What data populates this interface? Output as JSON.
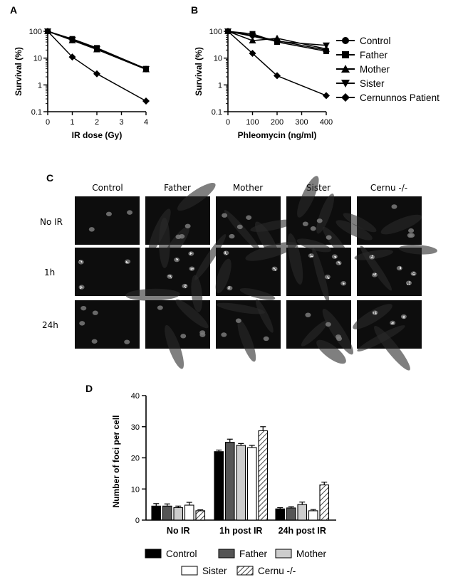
{
  "panel_letters": {
    "a": "A",
    "b": "B",
    "c": "C",
    "d": "D"
  },
  "legend_ab": [
    "Control",
    "Father",
    "Mother",
    "Sister",
    "Cernunnos Patient"
  ],
  "micrograph_grid": {
    "columns": [
      "Control",
      "Father",
      "Mother",
      "Sister",
      "Cernu -/-"
    ],
    "rows": [
      "No IR",
      "1h",
      "24h"
    ]
  },
  "chart_data": [
    {
      "panel": "A",
      "type": "line",
      "yscale": "log",
      "xlabel": "IR dose (Gy)",
      "ylabel": "Survival (%)",
      "xlim": [
        0,
        4
      ],
      "ylim": [
        0.1,
        100
      ],
      "xticks": [
        0,
        1,
        2,
        3,
        4
      ],
      "yticks": [
        0.1,
        1,
        10,
        100
      ],
      "yticklabels": [
        "0.1",
        "1",
        "10",
        "100"
      ],
      "series": [
        {
          "name": "Control",
          "marker": "circle",
          "x": [
            0,
            1,
            2,
            4
          ],
          "y": [
            100,
            50,
            23,
            4
          ]
        },
        {
          "name": "Father",
          "marker": "square",
          "x": [
            0,
            1,
            2,
            4
          ],
          "y": [
            100,
            52,
            24,
            4
          ]
        },
        {
          "name": "Mother",
          "marker": "triangle-up",
          "x": [
            0,
            1,
            2,
            4
          ],
          "y": [
            100,
            46,
            21,
            3.8
          ]
        },
        {
          "name": "Sister",
          "marker": "triangle-down",
          "x": [
            0,
            1,
            2,
            4
          ],
          "y": [
            100,
            48,
            22,
            3.9
          ]
        },
        {
          "name": "Cernunnos Patient",
          "marker": "diamond",
          "x": [
            0,
            1,
            2,
            4
          ],
          "y": [
            100,
            11,
            2.6,
            0.25
          ]
        }
      ]
    },
    {
      "panel": "B",
      "type": "line",
      "yscale": "log",
      "xlabel": "Phleomycin (ng/ml)",
      "ylabel": "Survival (%)",
      "xlim": [
        0,
        400
      ],
      "ylim": [
        0.1,
        100
      ],
      "xticks": [
        0,
        100,
        200,
        300,
        400
      ],
      "yticks": [
        0.1,
        1,
        10,
        100
      ],
      "yticklabels": [
        "0.1",
        "1",
        "10",
        "100"
      ],
      "series": [
        {
          "name": "Control",
          "marker": "circle",
          "x": [
            0,
            100,
            200,
            400
          ],
          "y": [
            100,
            70,
            45,
            20
          ]
        },
        {
          "name": "Father",
          "marker": "square",
          "x": [
            0,
            100,
            200,
            400
          ],
          "y": [
            100,
            80,
            40,
            18
          ]
        },
        {
          "name": "Mother",
          "marker": "triangle-up",
          "x": [
            0,
            100,
            200,
            400
          ],
          "y": [
            100,
            45,
            55,
            22
          ]
        },
        {
          "name": "Sister",
          "marker": "triangle-down",
          "x": [
            0,
            100,
            200,
            400
          ],
          "y": [
            100,
            65,
            42,
            30
          ]
        },
        {
          "name": "Cernunnos Patient",
          "marker": "diamond",
          "x": [
            0,
            100,
            200,
            400
          ],
          "y": [
            100,
            15,
            2.2,
            0.4
          ]
        }
      ]
    },
    {
      "panel": "D",
      "type": "bar",
      "ylabel": "Number of foci per cell",
      "categories": [
        "No IR",
        "1h post IR",
        "24h post IR"
      ],
      "ylim": [
        0,
        40
      ],
      "yticks": [
        0,
        10,
        20,
        30,
        40
      ],
      "series": [
        {
          "name": "Control",
          "fill": "#000000",
          "values": [
            4.5,
            22,
            3.6
          ],
          "errors": [
            0.8,
            0.5,
            0.4
          ]
        },
        {
          "name": "Father",
          "fill": "#555555",
          "values": [
            4.5,
            25,
            3.9
          ],
          "errors": [
            0.7,
            1.0,
            0.4
          ]
        },
        {
          "name": "Mother",
          "fill": "#cccccc",
          "values": [
            4.0,
            24,
            5.0
          ],
          "errors": [
            0.5,
            0.6,
            0.8
          ]
        },
        {
          "name": "Sister",
          "fill": "#ffffff",
          "values": [
            4.8,
            23.3,
            3.0
          ],
          "errors": [
            0.9,
            0.7,
            0.4
          ]
        },
        {
          "name": "Cernu -/-",
          "fill": "hatch",
          "values": [
            3.0,
            28.7,
            11.3
          ],
          "errors": [
            0.3,
            1.3,
            0.9
          ]
        }
      ]
    }
  ]
}
